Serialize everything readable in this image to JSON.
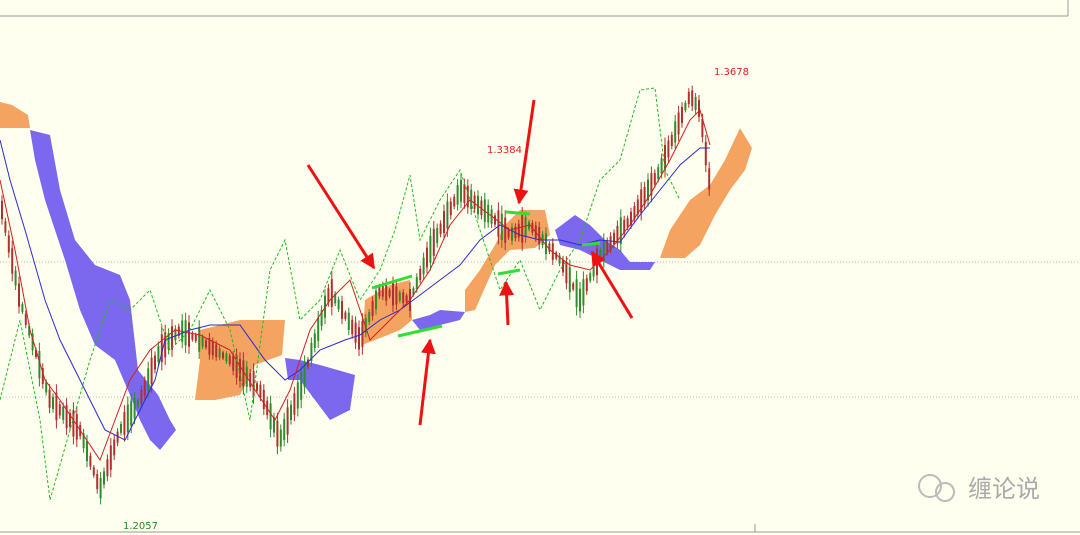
{
  "price_labels": [
    {
      "text": "1.3678"
    },
    {
      "text": "1.3384"
    },
    {
      "text": "1.2057"
    }
  ],
  "watermark": "缠论说"
}
